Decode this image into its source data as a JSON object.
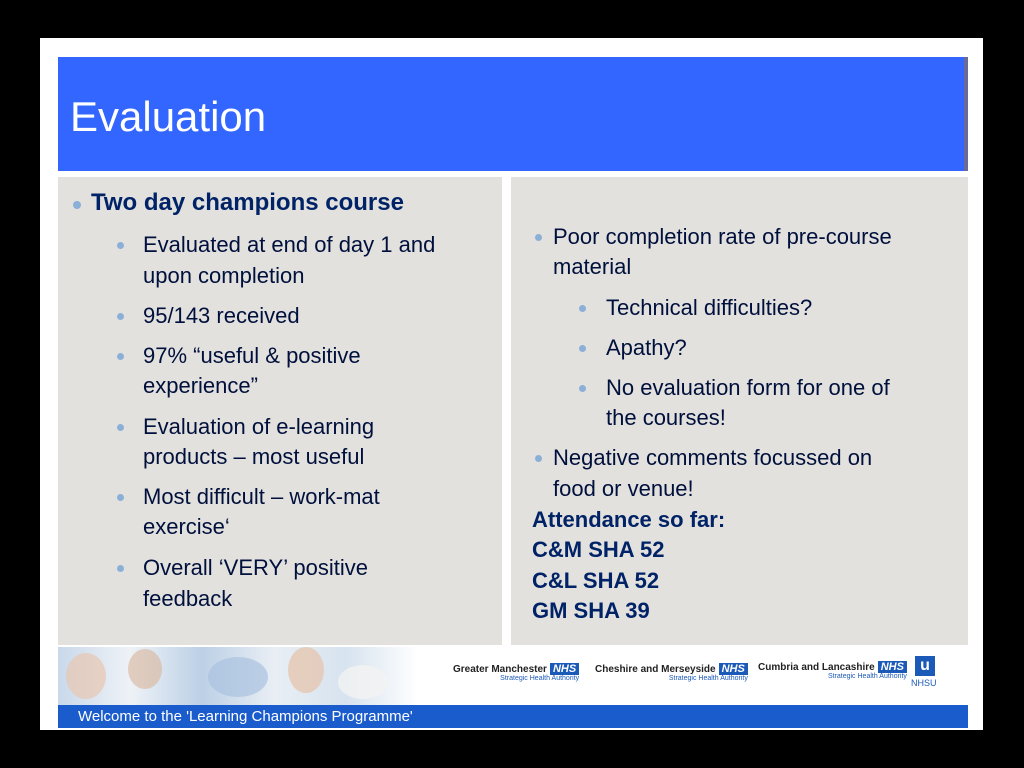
{
  "title": "Evaluation",
  "left": {
    "heading": "Two day champions course",
    "items": [
      {
        "lines": [
          "Evaluated at end of day 1 and",
          "upon completion"
        ]
      },
      {
        "lines": [
          "95/143 received"
        ]
      },
      {
        "lines": [
          "97% “useful & positive",
          "experience”"
        ]
      },
      {
        "lines": [
          "Evaluation of e-learning",
          "products – most useful"
        ]
      },
      {
        "lines": [
          "Most difficult – work-mat",
          "exercise‘"
        ]
      },
      {
        "lines": [
          "Overall ‘VERY’ positive",
          "feedback"
        ]
      }
    ]
  },
  "right": {
    "item1": [
      "Poor completion rate of pre-course",
      "material"
    ],
    "sub": [
      "Technical difficulties?",
      "Apathy?",
      "No evaluation form for one of",
      "the courses!"
    ],
    "item2": [
      "Negative comments focussed on",
      "food or venue!"
    ],
    "attendance": [
      "Attendance so far:",
      "C&M SHA 52",
      "C&L SHA 52",
      "GM SHA 39"
    ]
  },
  "footer": {
    "text": "Welcome to the 'Learning Champions Programme'",
    "logos": [
      {
        "name": "Greater Manchester",
        "nhs": "NHS",
        "sub": "Strategic Health Authority"
      },
      {
        "name": "Cheshire and Merseyside",
        "nhs": "NHS",
        "sub": "Strategic Health Authority"
      },
      {
        "name": "Cumbria and Lancashire",
        "nhs": "NHS",
        "sub": "Strategic Health Authority"
      }
    ],
    "nhsu_letter": "u",
    "nhsu_label": "NHSU"
  },
  "colors": {
    "title_bg": "#3366ff",
    "footer_bg": "#1a5ccc",
    "panel_bg": "#e3e1dd",
    "text": "#00103d"
  }
}
